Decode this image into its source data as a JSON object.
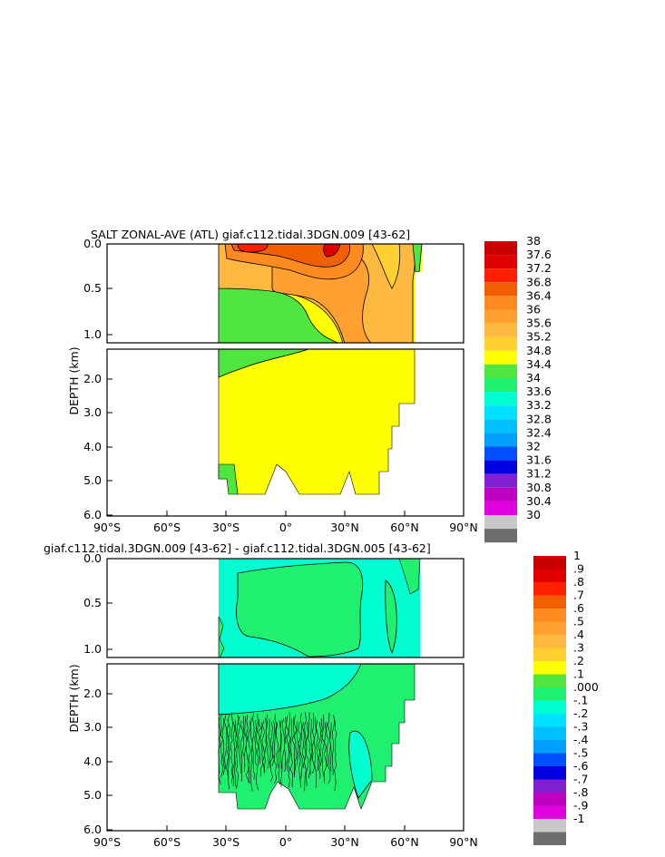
{
  "chart_data": [
    {
      "type": "heatmap",
      "title": "SALT ZONAL-AVE (ATL) giaf.c112.tidal.3DGN.009 [43-62]",
      "ylabel": "DEPTH (km)",
      "xlabel": "",
      "x_ticks": [
        "90°S",
        "60°S",
        "30°S",
        "0°",
        "30°N",
        "60°N",
        "90°N"
      ],
      "y_ticks_upper": [
        "0.0",
        "0.5",
        "1.0"
      ],
      "y_ticks_lower": [
        "2.0",
        "3.0",
        "4.0",
        "5.0",
        "6.0"
      ],
      "xlim": [
        -90,
        90
      ],
      "ylim": [
        6.0,
        0.0
      ],
      "colorbar": {
        "labels": [
          "38",
          "37.6",
          "37.2",
          "36.8",
          "36.4",
          "36",
          "35.6",
          "35.2",
          "34.8",
          "34.4",
          "34",
          "33.6",
          "33.2",
          "32.8",
          "32.4",
          "32",
          "31.6",
          "31.2",
          "30.8",
          "30.4",
          "30"
        ],
        "colors": [
          "#c80000",
          "#e00000",
          "#ff2000",
          "#f06000",
          "#ff8a20",
          "#ffa030",
          "#ffb840",
          "#ffd030",
          "#ffff00",
          "#50e640",
          "#20f070",
          "#00ffd0",
          "#00e0ff",
          "#00c0ff",
          "#00a0ff",
          "#0050ff",
          "#0000e0",
          "#8020d0",
          "#c000c0",
          "#e000e0",
          "#c8c8c8",
          "#6e6e6e"
        ]
      },
      "regions": [
        {
          "value": 34.8,
          "x": [
            -35,
            66
          ],
          "depth": [
            0.0,
            5.4
          ]
        },
        {
          "value": 34.6,
          "x": [
            -35,
            -5
          ],
          "depth": [
            0.5,
            1.5
          ]
        },
        {
          "value": 35.6,
          "x": [
            -35,
            65
          ],
          "depth": [
            0.0,
            1.15
          ]
        },
        {
          "value": 36.6,
          "x": [
            -30,
            35
          ],
          "depth": [
            0.0,
            0.3
          ]
        },
        {
          "value": 37.4,
          "x": [
            -15,
            25
          ],
          "depth": [
            0.0,
            0.1
          ]
        }
      ]
    },
    {
      "type": "heatmap",
      "title": "giaf.c112.tidal.3DGN.009 [43-62] - giaf.c112.tidal.3DGN.005 [43-62]",
      "ylabel": "DEPTH (km)",
      "xlabel": "",
      "x_ticks": [
        "90°S",
        "60°S",
        "30°S",
        "0°",
        "30°N",
        "60°N",
        "90°N"
      ],
      "y_ticks_upper": [
        "0.0",
        "0.5",
        "1.0"
      ],
      "y_ticks_lower": [
        "2.0",
        "3.0",
        "4.0",
        "5.0",
        "6.0"
      ],
      "xlim": [
        -90,
        90
      ],
      "ylim": [
        6.0,
        0.0
      ],
      "colorbar": {
        "labels": [
          "1",
          ".9",
          ".8",
          ".7",
          ".6",
          ".5",
          ".4",
          ".3",
          ".2",
          ".1",
          ".000",
          "-.1",
          "-.2",
          "-.3",
          "-.4",
          "-.5",
          "-.6",
          "-.7",
          "-.8",
          "-.9",
          "-1"
        ],
        "colors": [
          "#c80000",
          "#e00000",
          "#ff2000",
          "#f06000",
          "#ff8a20",
          "#ffa030",
          "#ffb840",
          "#ffd030",
          "#ffff00",
          "#50e640",
          "#20f070",
          "#00ffd0",
          "#00e0ff",
          "#00c0ff",
          "#00a0ff",
          "#0050ff",
          "#0000e0",
          "#8020d0",
          "#c000c0",
          "#e000e0",
          "#c8c8c8",
          "#6e6e6e"
        ]
      },
      "regions": [
        {
          "value": -0.05,
          "x": [
            -35,
            66
          ],
          "depth": [
            0.0,
            5.4
          ]
        },
        {
          "value": 0.05,
          "x": [
            -30,
            15
          ],
          "depth": [
            0.05,
            1.0
          ]
        },
        {
          "value": 0.05,
          "x": [
            -35,
            65
          ],
          "depth": [
            1.6,
            5.4
          ]
        },
        {
          "value": -0.05,
          "x": [
            -35,
            15
          ],
          "depth": [
            1.2,
            2.6
          ]
        },
        {
          "value": -0.05,
          "x": [
            35,
            50
          ],
          "depth": [
            3.5,
            5.2
          ]
        }
      ]
    }
  ]
}
